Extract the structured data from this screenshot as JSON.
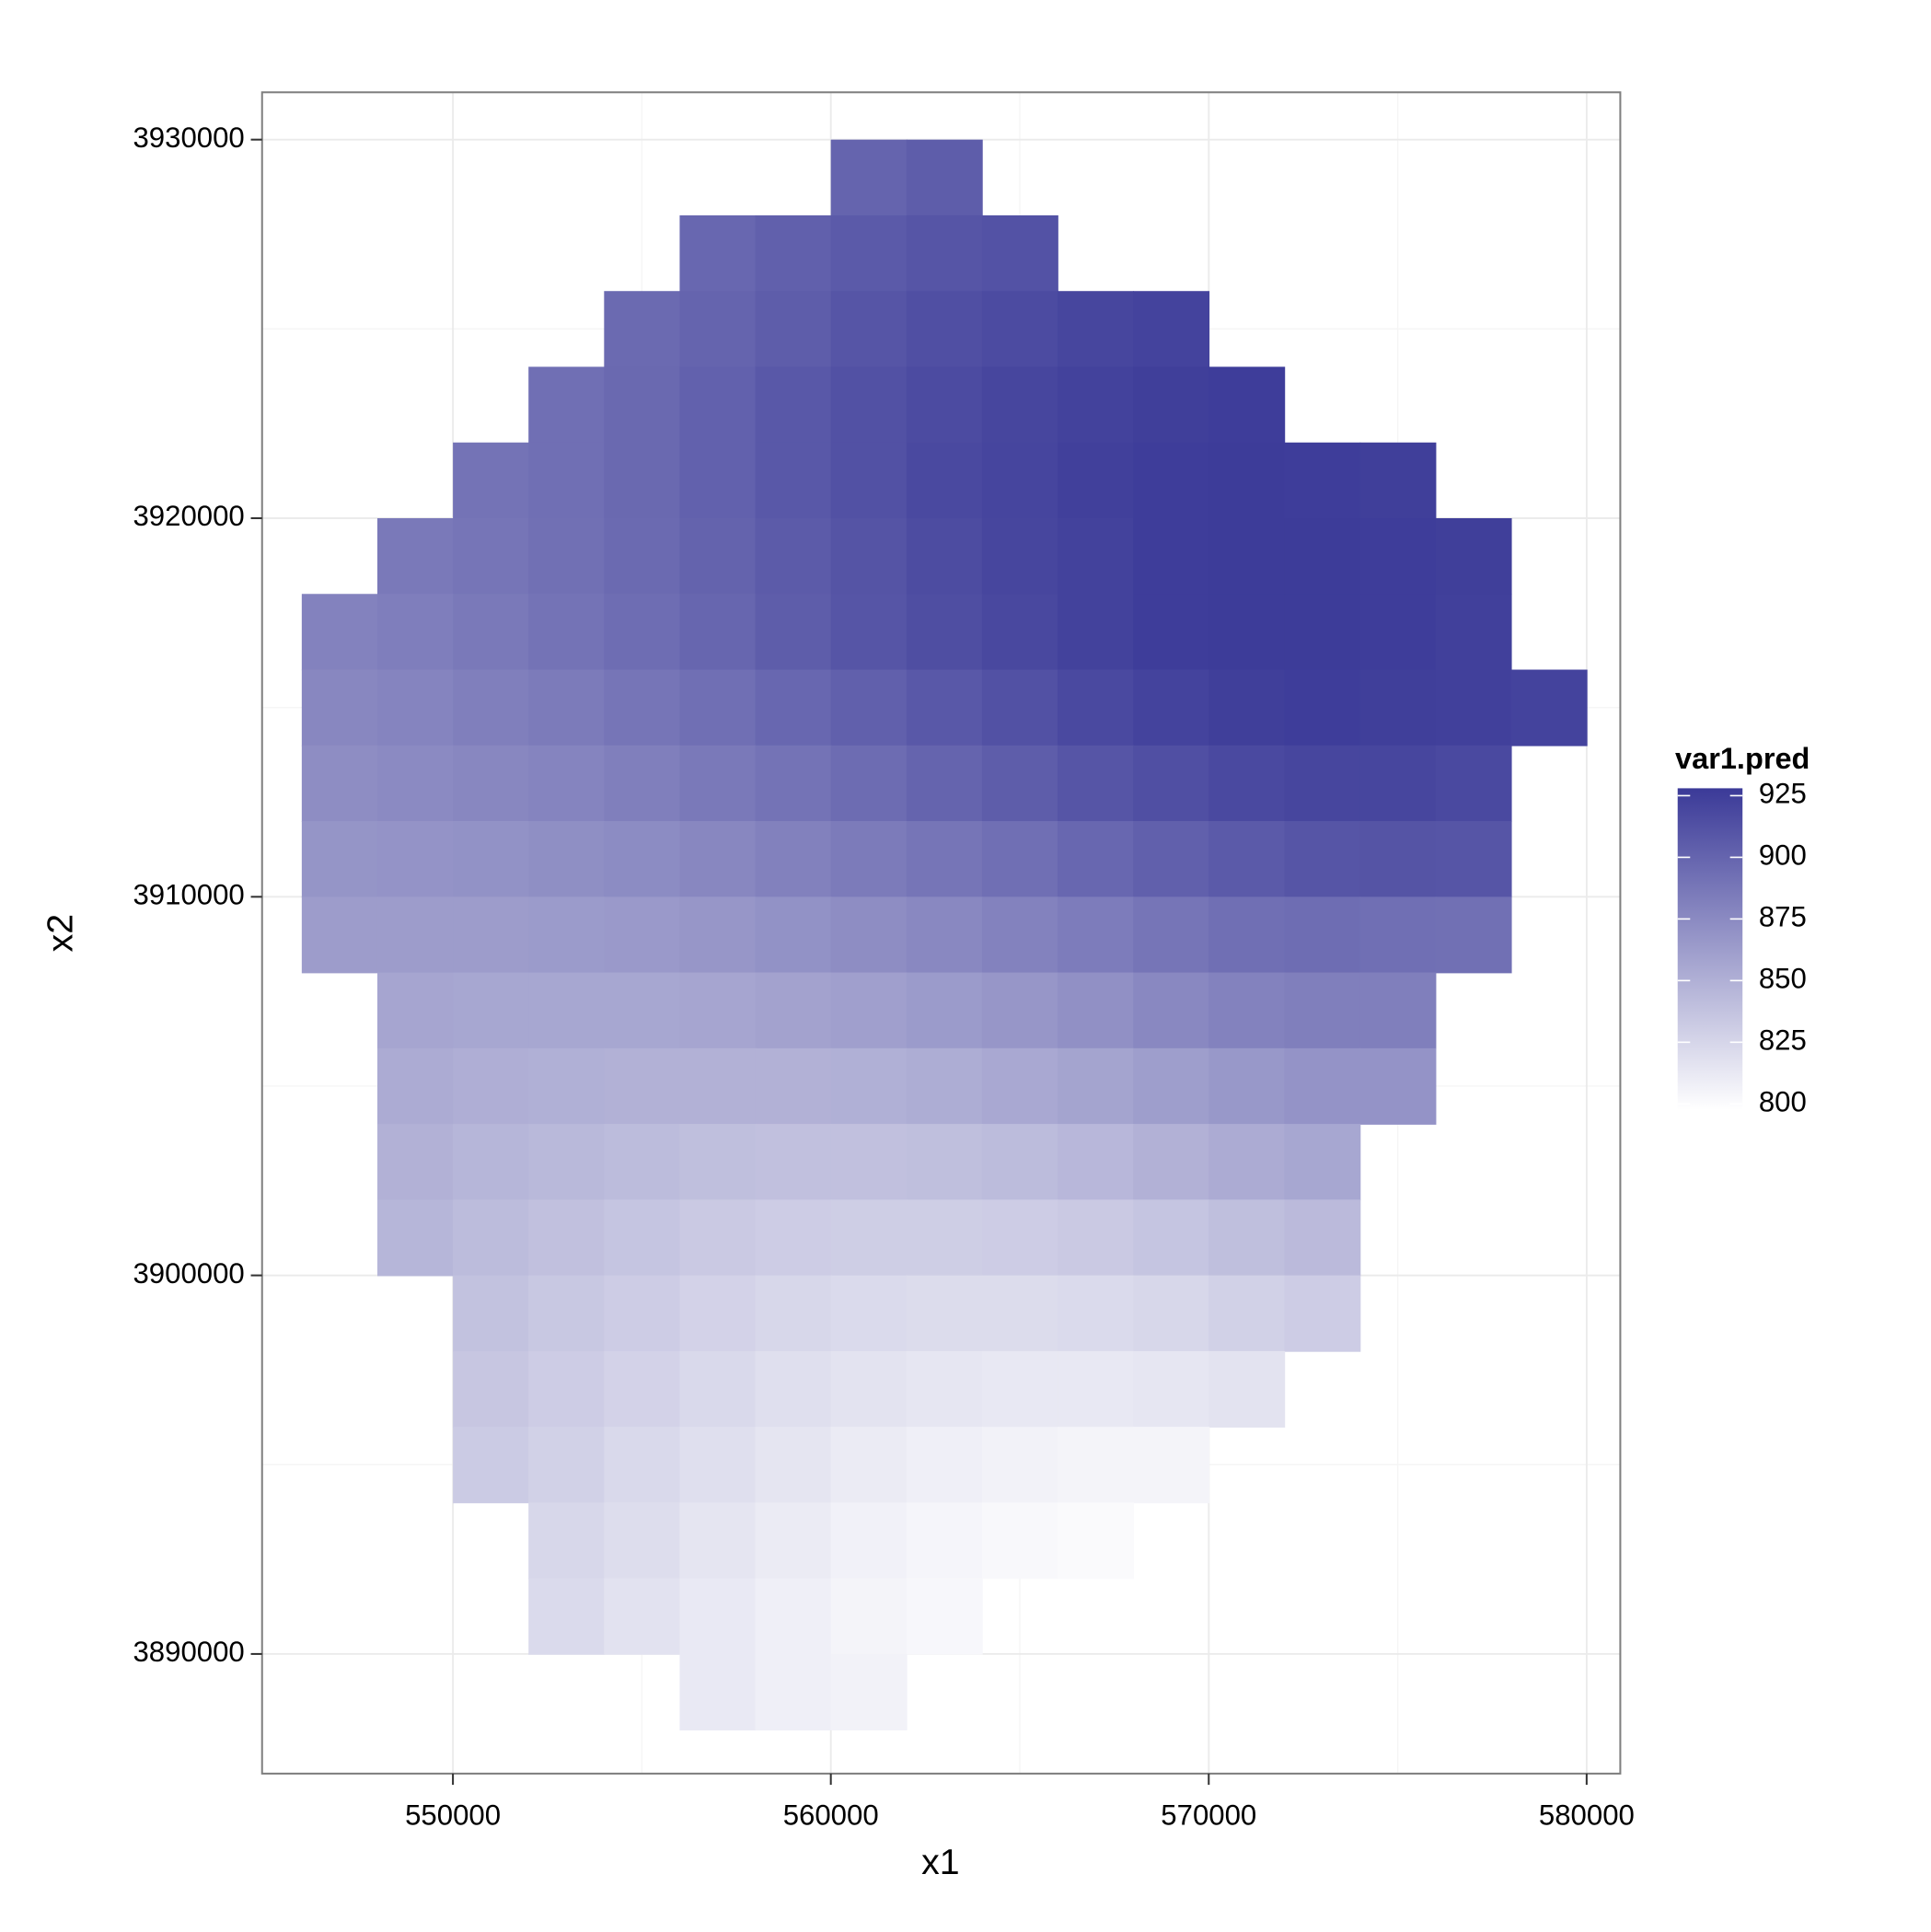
{
  "chart_data": {
    "type": "heatmap",
    "x_label": "x1",
    "y_label": "x2",
    "legend_title": "var1.pred",
    "x": [
      547000,
      549000,
      551000,
      553000,
      555000,
      557000,
      559000,
      561000,
      563000,
      565000,
      567000,
      569000,
      571000,
      573000,
      575000,
      577000,
      579000
    ],
    "y": [
      3929000,
      3927000,
      3925000,
      3923000,
      3921000,
      3919000,
      3917000,
      3915000,
      3913000,
      3911000,
      3909000,
      3907000,
      3905000,
      3903000,
      3901000,
      3899000,
      3897000,
      3895000,
      3893000,
      3891000,
      3889000
    ],
    "z": [
      [
        null,
        null,
        null,
        null,
        null,
        null,
        null,
        900,
        905,
        null,
        null,
        null,
        null,
        null,
        null,
        null,
        null
      ],
      [
        null,
        null,
        null,
        null,
        null,
        898,
        903,
        907,
        910,
        912,
        null,
        null,
        null,
        null,
        null,
        null,
        null
      ],
      [
        null,
        null,
        null,
        null,
        896,
        900,
        905,
        910,
        914,
        917,
        920,
        922,
        null,
        null,
        null,
        null,
        null
      ],
      [
        null,
        null,
        null,
        893,
        897,
        902,
        908,
        913,
        917,
        920,
        923,
        925,
        926,
        null,
        null,
        null,
        null
      ],
      [
        null,
        null,
        890,
        893,
        897,
        902,
        908,
        913,
        918,
        921,
        924,
        926,
        927,
        926,
        925,
        null,
        null
      ],
      [
        null,
        886,
        889,
        892,
        896,
        901,
        906,
        911,
        916,
        920,
        923,
        926,
        927,
        927,
        926,
        925,
        null
      ],
      [
        880,
        883,
        886,
        890,
        894,
        899,
        905,
        910,
        915,
        919,
        923,
        926,
        927,
        927,
        926,
        924,
        null
      ],
      [
        877,
        879,
        882,
        885,
        889,
        893,
        898,
        903,
        908,
        913,
        918,
        922,
        925,
        926,
        925,
        924,
        922
      ],
      [
        873,
        875,
        877,
        879,
        882,
        886,
        890,
        895,
        900,
        905,
        910,
        914,
        918,
        920,
        920,
        918,
        null
      ],
      [
        868,
        869,
        870,
        872,
        874,
        877,
        881,
        885,
        889,
        893,
        898,
        903,
        907,
        910,
        911,
        910,
        null
      ],
      [
        863,
        863,
        863,
        864,
        865,
        867,
        870,
        873,
        876,
        880,
        884,
        889,
        893,
        894,
        893,
        892,
        null
      ],
      [
        null,
        857,
        856,
        856,
        856,
        857,
        859,
        861,
        864,
        867,
        871,
        876,
        880,
        882,
        882,
        null,
        null
      ],
      [
        null,
        853,
        851,
        850,
        849,
        849,
        849,
        850,
        852,
        855,
        858,
        862,
        866,
        869,
        869,
        null,
        null
      ],
      [
        null,
        849,
        846,
        844,
        842,
        840,
        839,
        839,
        840,
        842,
        845,
        849,
        853,
        856,
        null,
        null,
        null
      ],
      [
        null,
        846,
        842,
        839,
        836,
        833,
        831,
        830,
        830,
        831,
        833,
        836,
        840,
        843,
        null,
        null,
        null
      ],
      [
        null,
        null,
        838,
        834,
        831,
        827,
        824,
        822,
        821,
        821,
        822,
        824,
        828,
        831,
        null,
        null,
        null
      ],
      [
        null,
        null,
        835,
        831,
        827,
        823,
        819,
        816,
        814,
        813,
        813,
        814,
        816,
        null,
        null,
        null,
        null
      ],
      [
        null,
        null,
        832,
        828,
        823,
        819,
        815,
        811,
        808,
        806,
        805,
        805,
        null,
        null,
        null,
        null,
        null
      ],
      [
        null,
        null,
        null,
        824,
        820,
        815,
        811,
        807,
        804,
        802,
        801,
        null,
        null,
        null,
        null,
        null,
        null
      ],
      [
        null,
        null,
        null,
        822,
        817,
        812,
        808,
        805,
        803,
        null,
        null,
        null,
        null,
        null,
        null,
        null,
        null
      ],
      [
        null,
        null,
        null,
        null,
        null,
        812,
        808,
        806,
        null,
        null,
        null,
        null,
        null,
        null,
        null,
        null,
        null
      ]
    ],
    "xlim": [
      544950,
      580890
    ],
    "ylim": [
      3886840,
      3931250
    ],
    "xticks": [
      550000,
      560000,
      570000,
      580000
    ],
    "yticks": [
      3890000,
      3900000,
      3910000,
      3920000,
      3930000
    ],
    "xminor": [
      555000,
      565000,
      575000
    ],
    "yminor": [
      3895000,
      3905000,
      3915000,
      3925000
    ],
    "zlim": [
      797.5,
      928
    ],
    "zticks": [
      800,
      825,
      850,
      875,
      900,
      925
    ],
    "low_color": "#ffffff",
    "high_color": "#3b3a98",
    "grid": true,
    "legend_position": "right"
  }
}
